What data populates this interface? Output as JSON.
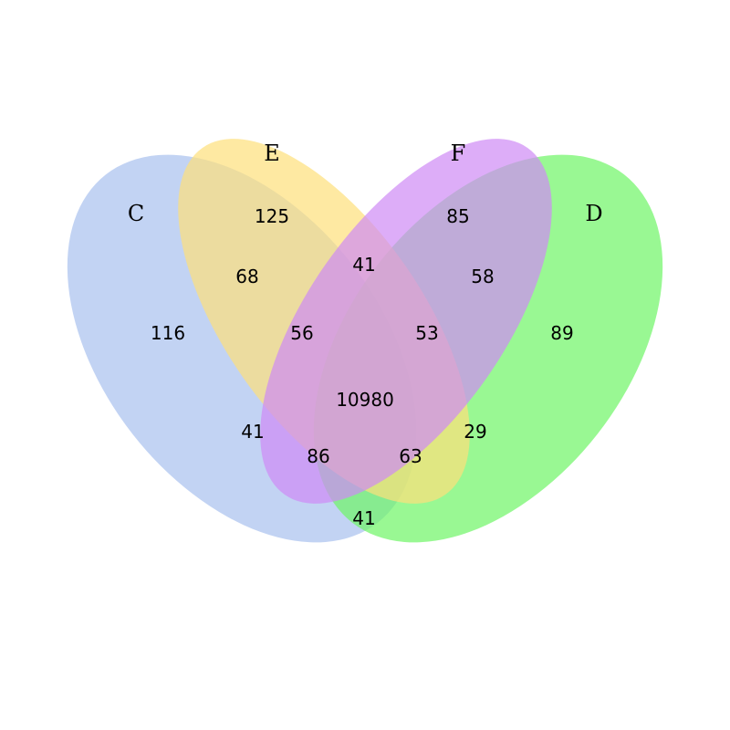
{
  "sets": {
    "C": {
      "label": "C",
      "color": "#a8c0ee"
    },
    "E": {
      "label": "E",
      "color": "#fde07a"
    },
    "F": {
      "label": "F",
      "color": "#cf8af5"
    },
    "D": {
      "label": "D",
      "color": "#6ef565"
    }
  },
  "regions": {
    "C_only": "116",
    "E_only": "125",
    "F_only": "85",
    "D_only": "89",
    "C_E": "68",
    "E_F": "41",
    "F_D": "58",
    "C_F": "41",
    "E_D": "29",
    "C_D": "41",
    "C_E_F": "56",
    "E_F_D": "53",
    "C_F_D": "86",
    "C_E_D": "63",
    "C_E_F_D": "10980"
  }
}
